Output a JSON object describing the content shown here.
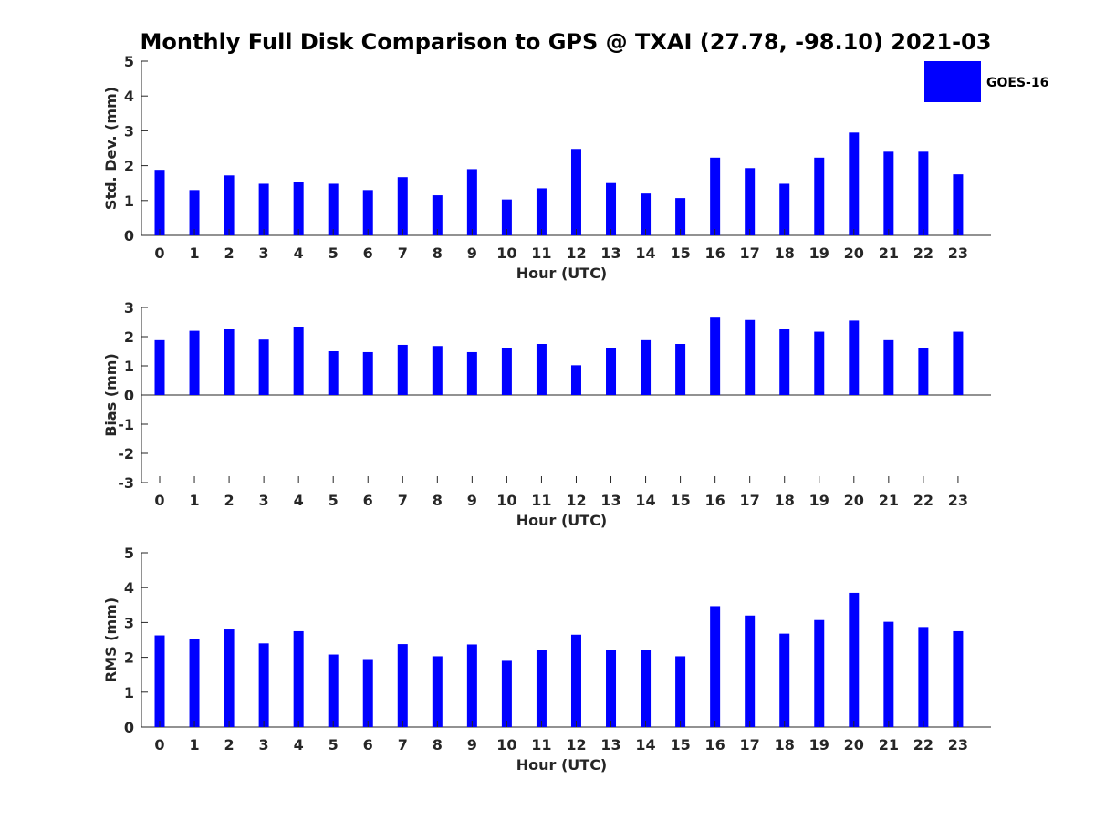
{
  "title": "Monthly Full Disk Comparison to GPS @ TXAI (27.78, -98.10) 2021-03",
  "legend": {
    "label": "GOES-16",
    "color": "#0000ff",
    "placement": "top-right"
  },
  "chart_data": [
    {
      "type": "bar",
      "name": "std-dev",
      "categories": [
        "0",
        "1",
        "2",
        "3",
        "4",
        "5",
        "6",
        "7",
        "8",
        "9",
        "10",
        "11",
        "12",
        "13",
        "14",
        "15",
        "16",
        "17",
        "18",
        "19",
        "20",
        "21",
        "22",
        "23"
      ],
      "series": [
        {
          "name": "GOES-16",
          "color": "#0000ff",
          "values": [
            1.88,
            1.3,
            1.72,
            1.48,
            1.53,
            1.48,
            1.3,
            1.67,
            1.15,
            1.9,
            1.03,
            1.35,
            2.48,
            1.5,
            1.2,
            1.07,
            2.23,
            1.93,
            1.48,
            2.23,
            2.95,
            2.4,
            2.4,
            1.75
          ]
        }
      ],
      "xlabel": "Hour (UTC)",
      "ylabel": "Std. Dev. (mm)",
      "ylim": [
        0,
        5
      ],
      "yticks": [
        "0",
        "1",
        "2",
        "3",
        "4",
        "5"
      ],
      "grid": false,
      "legend": true
    },
    {
      "type": "bar",
      "name": "bias",
      "categories": [
        "0",
        "1",
        "2",
        "3",
        "4",
        "5",
        "6",
        "7",
        "8",
        "9",
        "10",
        "11",
        "12",
        "13",
        "14",
        "15",
        "16",
        "17",
        "18",
        "19",
        "20",
        "21",
        "22",
        "23"
      ],
      "series": [
        {
          "name": "GOES-16",
          "color": "#0000ff",
          "values": [
            1.88,
            2.2,
            2.25,
            1.9,
            2.32,
            1.5,
            1.47,
            1.72,
            1.68,
            1.47,
            1.6,
            1.75,
            1.02,
            1.6,
            1.88,
            1.75,
            2.65,
            2.57,
            2.25,
            2.17,
            2.55,
            1.88,
            1.6,
            2.17
          ]
        }
      ],
      "xlabel": "Hour (UTC)",
      "ylabel": "Bias (mm)",
      "ylim": [
        -3,
        3
      ],
      "yticks": [
        "-3",
        "-2",
        "-1",
        "0",
        "1",
        "2",
        "3"
      ],
      "grid": false,
      "legend": false
    },
    {
      "type": "bar",
      "name": "rms",
      "categories": [
        "0",
        "1",
        "2",
        "3",
        "4",
        "5",
        "6",
        "7",
        "8",
        "9",
        "10",
        "11",
        "12",
        "13",
        "14",
        "15",
        "16",
        "17",
        "18",
        "19",
        "20",
        "21",
        "22",
        "23"
      ],
      "series": [
        {
          "name": "GOES-16",
          "color": "#0000ff",
          "values": [
            2.63,
            2.53,
            2.8,
            2.4,
            2.75,
            2.08,
            1.95,
            2.38,
            2.03,
            2.37,
            1.9,
            2.2,
            2.65,
            2.2,
            2.22,
            2.03,
            3.47,
            3.2,
            2.68,
            3.07,
            3.85,
            3.02,
            2.87,
            2.75
          ]
        }
      ],
      "xlabel": "Hour (UTC)",
      "ylabel": "RMS (mm)",
      "ylim": [
        0,
        5
      ],
      "yticks": [
        "0",
        "1",
        "2",
        "3",
        "4",
        "5"
      ],
      "grid": false,
      "legend": false
    }
  ]
}
